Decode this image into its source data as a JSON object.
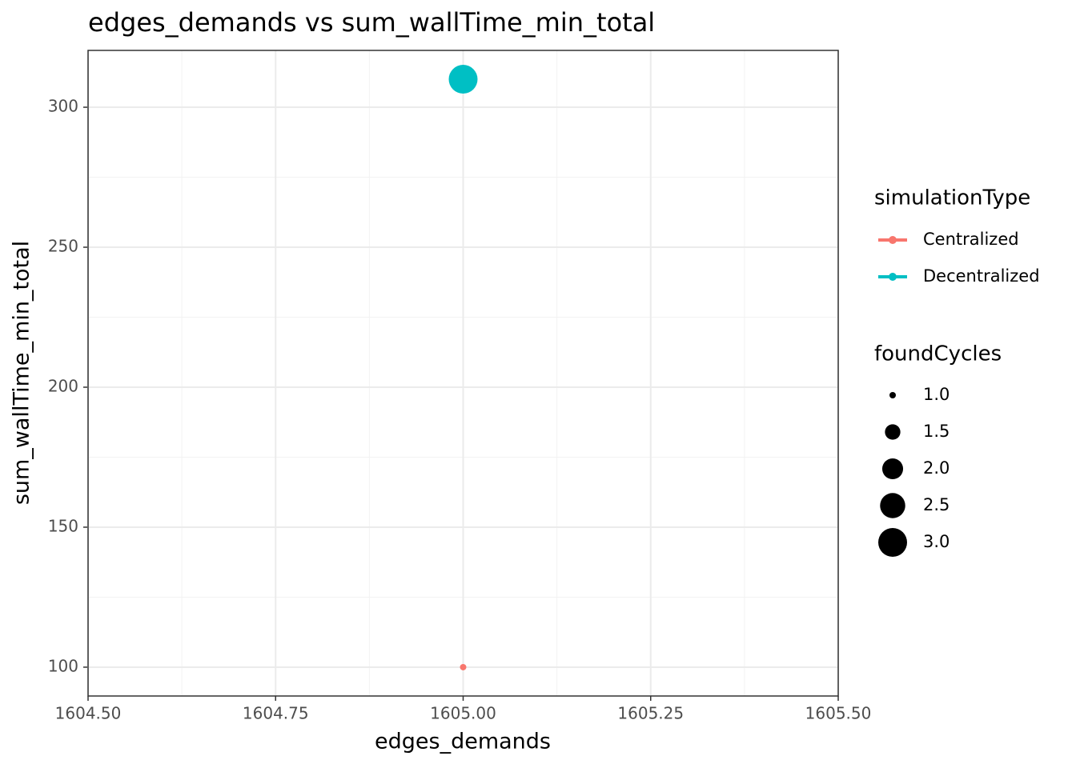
{
  "chart_data": {
    "type": "scatter",
    "title": "edges_demands  vs  sum_wallTime_min_total",
    "x_label": "edges_demands",
    "y_label": "sum_wallTime_min_total",
    "xlim": [
      1604.5,
      1605.5
    ],
    "xticks": [
      {
        "value": 1604.5,
        "label": "1604.50"
      },
      {
        "value": 1604.75,
        "label": "1604.75"
      },
      {
        "value": 1605,
        "label": "1605.00"
      },
      {
        "value": 1605.25,
        "label": "1605.25"
      },
      {
        "value": 1605.5,
        "label": "1605.50"
      }
    ],
    "ylim": [
      89.7,
      320.3
    ],
    "yticks": [
      100,
      150,
      200,
      250,
      300
    ],
    "grid": true,
    "legend_title": "simulationType",
    "series": [
      {
        "name": "Centralized",
        "color": "#f8766d",
        "x": [
          1605
        ],
        "values": [
          100
        ],
        "sizes": [
          1
        ]
      },
      {
        "name": "Decentralized",
        "color": "#00bfc4",
        "x": [
          1605
        ],
        "values": [
          310
        ],
        "sizes": [
          3
        ]
      }
    ],
    "size_legend": {
      "title": "foundCycles",
      "values": [
        {
          "value": 1,
          "label": "1.0"
        },
        {
          "value": 1.5,
          "label": "1.5"
        },
        {
          "value": 2,
          "label": "2.0"
        },
        {
          "value": 2.5,
          "label": "2.5"
        },
        {
          "value": 3,
          "label": "3.0"
        }
      ]
    }
  }
}
